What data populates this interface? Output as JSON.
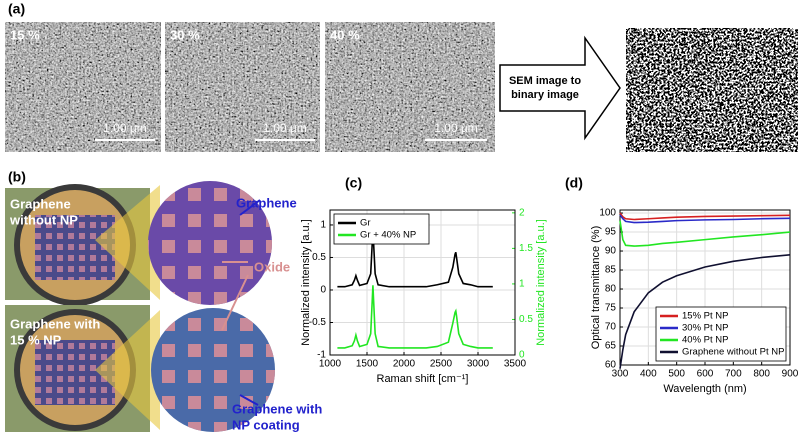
{
  "panels": {
    "a": {
      "label": "(a)",
      "images": [
        {
          "label": "15 %",
          "scale": "1.00 µm"
        },
        {
          "label": "30 %",
          "scale": "1.00 µm"
        },
        {
          "label": "40 %",
          "scale": "1.00 µm"
        }
      ],
      "arrow_text": [
        "SEM image to",
        "binary image"
      ]
    },
    "b": {
      "label": "(b)",
      "top_device": [
        "Graphene",
        "without NP"
      ],
      "top_zoom": "Graphene",
      "oxide": "Oxide",
      "bottom_device": [
        "Graphene with",
        "15 % NP"
      ],
      "bottom_zoom": [
        "Graphene with",
        "NP coating"
      ]
    }
  },
  "chart_data": [
    {
      "type": "line",
      "label": "(c)",
      "xlabel": "Raman shift [cm⁻¹]",
      "ylabel": "Normalized intensity [a.u.]",
      "y2label": "Normalized intensity [a.u.]",
      "x": [
        1100,
        1200,
        1300,
        1330,
        1350,
        1370,
        1400,
        1500,
        1550,
        1570,
        1580,
        1590,
        1610,
        1650,
        1800,
        2000,
        2300,
        2450,
        2600,
        2660,
        2690,
        2700,
        2710,
        2740,
        2800,
        2900,
        3000,
        3200
      ],
      "series": [
        {
          "name": "Gr",
          "color": "#000000",
          "values": [
            0.05,
            0.05,
            0.08,
            0.15,
            0.22,
            0.15,
            0.07,
            0.1,
            0.25,
            0.7,
            1.0,
            0.7,
            0.25,
            0.08,
            0.05,
            0.05,
            0.05,
            0.08,
            0.12,
            0.35,
            0.55,
            0.58,
            0.5,
            0.25,
            0.1,
            0.08,
            0.05,
            0.05
          ]
        },
        {
          "name": "Gr + 40% NP",
          "color": "#22e622",
          "axis": "y2",
          "values": [
            0.1,
            0.1,
            0.13,
            0.2,
            0.28,
            0.2,
            0.12,
            0.15,
            0.3,
            0.75,
            0.98,
            0.75,
            0.3,
            0.12,
            0.1,
            0.1,
            0.1,
            0.12,
            0.18,
            0.45,
            0.6,
            0.62,
            0.55,
            0.3,
            0.15,
            0.12,
            0.1,
            0.1
          ]
        }
      ],
      "xlim": [
        1000,
        3500
      ],
      "xticks": [
        1000,
        1500,
        2000,
        2500,
        3000,
        3500
      ],
      "ylim": [
        -1,
        1.23
      ],
      "yticks": [
        -1,
        -0.5,
        0,
        0.5,
        1
      ],
      "y2lim": [
        0,
        2.04
      ],
      "y2ticks": [
        0,
        0.5,
        1,
        1.5,
        2
      ],
      "grid": true,
      "legend": "upper left"
    },
    {
      "type": "line",
      "label": "(d)",
      "xlabel": "Wavelength (nm)",
      "ylabel": "Optical transmittance (%)",
      "x": [
        300,
        310,
        320,
        350,
        400,
        450,
        500,
        600,
        700,
        800,
        900
      ],
      "series": [
        {
          "name": "15% Pt NP",
          "color": "#d62020",
          "values": [
            100,
            99,
            98.5,
            98.3,
            98.5,
            98.7,
            98.9,
            99.1,
            99.2,
            99.3,
            99.4
          ]
        },
        {
          "name": "30% Pt NP",
          "color": "#2a2ac8",
          "values": [
            99.5,
            98.5,
            97.8,
            97.5,
            97.6,
            97.8,
            98,
            98.2,
            98.3,
            98.5,
            98.6
          ]
        },
        {
          "name": "40% Pt NP",
          "color": "#22e622",
          "values": [
            98,
            93,
            91.5,
            91.3,
            91.5,
            92,
            92.3,
            93,
            93.7,
            94.3,
            95
          ]
        },
        {
          "name": "Graphene without Pt NP",
          "color": "#101030",
          "values": [
            59,
            64,
            68,
            74,
            79,
            81.8,
            83.5,
            85.8,
            87.3,
            88.3,
            89
          ]
        }
      ],
      "xlim": [
        300,
        900
      ],
      "xticks": [
        300,
        400,
        500,
        600,
        700,
        800,
        900
      ],
      "ylim": [
        60,
        100.8
      ],
      "yticks": [
        60,
        65,
        70,
        75,
        80,
        85,
        90,
        95,
        100
      ],
      "grid": true,
      "legend": "lower right"
    }
  ]
}
